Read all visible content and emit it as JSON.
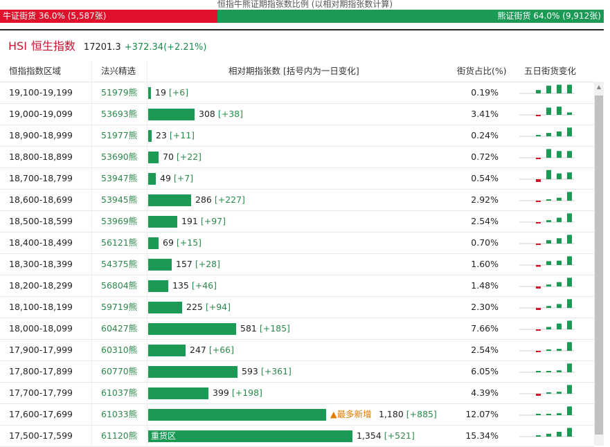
{
  "page_title": "恒指牛熊证期指张数比例 (以相对期指张数计算)",
  "ratio": {
    "bull_label": "牛证街货 36.0% (5,587张)",
    "bear_label": "熊证街货 64.0% (9,912张)",
    "bull_pct": 36.0,
    "colors": {
      "bull": "#e0112b",
      "bear": "#1a9a55"
    }
  },
  "index": {
    "code": "HSI",
    "name": "恒生指数",
    "value": "17201.3",
    "change": "+372.34(+2.21%)"
  },
  "table": {
    "headers": {
      "range": "恒指指数区域",
      "code": "法兴精选",
      "count": "相对期指张数 [括号内为一日变化]",
      "pct": "街货占比(%)",
      "trend": "五日街货变化"
    },
    "max_count": 1354,
    "rows": [
      {
        "range": "19,100-19,199",
        "code": "51979熊",
        "count": 19,
        "count_text": "19",
        "delta": "[+6]",
        "pct": "0.19%",
        "trend": [
          0,
          0.35,
          0.8,
          0.9,
          0.9
        ]
      },
      {
        "range": "19,000-19,099",
        "code": "53693熊",
        "count": 308,
        "count_text": "308",
        "delta": "[+38]",
        "pct": "3.41%",
        "trend": [
          0,
          -0.1,
          0.75,
          0.85,
          0.25
        ]
      },
      {
        "range": "18,900-18,999",
        "code": "51977熊",
        "count": 23,
        "count_text": "23",
        "delta": "[+11]",
        "pct": "0.24%",
        "trend": [
          0,
          0.1,
          0.35,
          0.5,
          0.9
        ]
      },
      {
        "range": "18,800-18,899",
        "code": "53690熊",
        "count": 70,
        "count_text": "70",
        "delta": "[+22]",
        "pct": "0.72%",
        "trend": [
          0,
          -0.1,
          0.9,
          0.7,
          0.7
        ]
      },
      {
        "range": "18,700-18,799",
        "code": "53947熊",
        "count": 49,
        "count_text": "49",
        "delta": "[+7]",
        "pct": "0.54%",
        "trend": [
          0,
          -0.4,
          0.95,
          0.6,
          0.7
        ]
      },
      {
        "range": "18,600-18,699",
        "code": "53945熊",
        "count": 286,
        "count_text": "286",
        "delta": "[+227]",
        "pct": "2.92%",
        "trend": [
          0,
          -0.1,
          0.1,
          0.3,
          0.9
        ]
      },
      {
        "range": "18,500-18,599",
        "code": "53969熊",
        "count": 191,
        "count_text": "191",
        "delta": "[+97]",
        "pct": "2.54%",
        "trend": [
          0,
          -0.1,
          0.2,
          0.45,
          0.9
        ]
      },
      {
        "range": "18,400-18,499",
        "code": "56121熊",
        "count": 69,
        "count_text": "69",
        "delta": "[+15]",
        "pct": "0.70%",
        "trend": [
          0,
          -0.1,
          0.35,
          0.55,
          0.9
        ]
      },
      {
        "range": "18,300-18,399",
        "code": "54375熊",
        "count": 157,
        "count_text": "157",
        "delta": "[+28]",
        "pct": "1.60%",
        "trend": [
          0,
          -0.25,
          0.4,
          0.45,
          0.9
        ]
      },
      {
        "range": "18,200-18,299",
        "code": "56804熊",
        "count": 135,
        "count_text": "135",
        "delta": "[+46]",
        "pct": "1.48%",
        "trend": [
          0,
          -0.3,
          0.2,
          0.45,
          0.9
        ]
      },
      {
        "range": "18,100-18,199",
        "code": "59719熊",
        "count": 225,
        "count_text": "225",
        "delta": "[+94]",
        "pct": "2.30%",
        "trend": [
          0,
          -0.3,
          0.2,
          0.4,
          0.9
        ]
      },
      {
        "range": "18,000-18,099",
        "code": "60427熊",
        "count": 581,
        "count_text": "581",
        "delta": "[+185]",
        "pct": "7.66%",
        "trend": [
          0,
          -0.1,
          0.25,
          0.6,
          0.9
        ]
      },
      {
        "range": "17,900-17,999",
        "code": "60310熊",
        "count": 247,
        "count_text": "247",
        "delta": "[+66]",
        "pct": "2.54%",
        "trend": [
          0,
          -0.2,
          0.1,
          0.2,
          0.9
        ]
      },
      {
        "range": "17,800-17,899",
        "code": "60770熊",
        "count": 593,
        "count_text": "593",
        "delta": "[+361]",
        "pct": "6.05%",
        "trend": [
          0,
          0.05,
          0.1,
          0.2,
          0.9
        ]
      },
      {
        "range": "17,700-17,799",
        "code": "61037熊",
        "count": 399,
        "count_text": "399",
        "delta": "[+198]",
        "pct": "4.39%",
        "trend": [
          0,
          -0.3,
          0.1,
          0.2,
          0.9
        ]
      },
      {
        "range": "17,600-17,699",
        "code": "61033熊",
        "count": 1180,
        "count_text": "1,180",
        "delta": "[+885]",
        "pct": "12.07%",
        "trend": [
          0,
          0.05,
          0.1,
          0.2,
          0.9
        ],
        "badge": "▲最多新增"
      },
      {
        "range": "17,500-17,599",
        "code": "61120熊",
        "count": 1354,
        "count_text": "1,354",
        "delta": "[+521]",
        "pct": "15.34%",
        "trend": [
          0,
          0.1,
          0.3,
          0.5,
          0.9
        ],
        "bar_label": "重货区"
      }
    ]
  }
}
